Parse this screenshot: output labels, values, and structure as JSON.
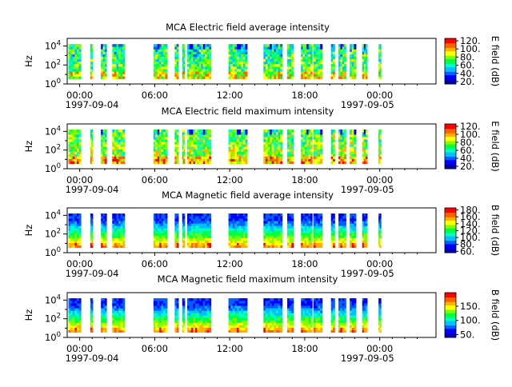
{
  "colors": {
    "spectral_scale": [
      "#0000b0",
      "#0000ff",
      "#0060ff",
      "#00c0ff",
      "#00ffc0",
      "#00ff40",
      "#80ff00",
      "#ffff00",
      "#ffb000",
      "#ff6000",
      "#ff0000"
    ],
    "axis": "#000000",
    "background": "#ffffff"
  },
  "chart_data": [
    {
      "type": "heatmap",
      "title": "MCA  Electric field average intensity",
      "ylabel": "Hz",
      "y_scale": "log",
      "y_ticks": [
        {
          "base": "10",
          "exp": "0"
        },
        {
          "base": "10",
          "exp": "2"
        },
        {
          "base": "10",
          "exp": "4"
        }
      ],
      "x_ticks": [
        "00:00",
        "06:00",
        "12:00",
        "18:00",
        "00:00"
      ],
      "x_start_date": "1997-09-04",
      "x_end_date": "1997-09-05",
      "x_range_hours": [
        -1,
        28.5
      ],
      "colorbar_label": "E field (dB)",
      "colorbar_ticks": [
        "20.",
        "40.",
        "60.",
        "80.",
        "100.",
        "120."
      ],
      "colorbar_range": [
        14,
        126
      ],
      "data_gaps": "yes",
      "typical_level": "medium-high"
    },
    {
      "type": "heatmap",
      "title": "MCA  Electric field maximum intensity",
      "ylabel": "Hz",
      "y_scale": "log",
      "y_ticks": [
        {
          "base": "10",
          "exp": "0"
        },
        {
          "base": "10",
          "exp": "2"
        },
        {
          "base": "10",
          "exp": "4"
        }
      ],
      "x_ticks": [
        "00:00",
        "06:00",
        "12:00",
        "18:00",
        "00:00"
      ],
      "x_start_date": "1997-09-04",
      "x_end_date": "1997-09-05",
      "x_range_hours": [
        -1,
        28.5
      ],
      "colorbar_label": "E field (dB)",
      "colorbar_ticks": [
        "20.",
        "40.",
        "60.",
        "80.",
        "100.",
        "120."
      ],
      "colorbar_range": [
        14,
        126
      ],
      "data_gaps": "yes",
      "typical_level": "high"
    },
    {
      "type": "heatmap",
      "title": "MCA  Magnetic field average intensity",
      "ylabel": "Hz",
      "y_scale": "log",
      "y_ticks": [
        {
          "base": "10",
          "exp": "0"
        },
        {
          "base": "10",
          "exp": "2"
        },
        {
          "base": "10",
          "exp": "4"
        }
      ],
      "x_ticks": [
        "00:00",
        "06:00",
        "12:00",
        "18:00",
        "00:00"
      ],
      "x_start_date": "1997-09-04",
      "x_end_date": "1997-09-05",
      "x_range_hours": [
        -1,
        28.5
      ],
      "colorbar_label": "B field (dB)",
      "colorbar_ticks": [
        "60.",
        "80.",
        "100.",
        "120.",
        "140.",
        "160.",
        "180."
      ],
      "colorbar_range": [
        56,
        186
      ],
      "data_gaps": "yes",
      "typical_level": "layered"
    },
    {
      "type": "heatmap",
      "title": "MCA  Magnetic field maximum intensity",
      "ylabel": "Hz",
      "y_scale": "log",
      "y_ticks": [
        {
          "base": "10",
          "exp": "0"
        },
        {
          "base": "10",
          "exp": "2"
        },
        {
          "base": "10",
          "exp": "4"
        }
      ],
      "x_ticks": [
        "00:00",
        "06:00",
        "12:00",
        "18:00",
        "00:00"
      ],
      "x_start_date": "1997-09-04",
      "x_end_date": "1997-09-05",
      "x_range_hours": [
        -1,
        28.5
      ],
      "colorbar_label": "B field (dB)",
      "colorbar_ticks": [
        "50.",
        "100.",
        "150."
      ],
      "colorbar_range": [
        40,
        198
      ],
      "data_gaps": "yes",
      "typical_level": "layered"
    }
  ],
  "data_segments_hours": [
    [
      -0.9,
      0.1
    ],
    [
      0.85,
      1.05
    ],
    [
      1.7,
      2.15
    ],
    [
      2.6,
      3.6
    ],
    [
      5.9,
      7.0
    ],
    [
      7.6,
      7.9
    ],
    [
      8.2,
      8.4
    ],
    [
      8.6,
      10.5
    ],
    [
      11.9,
      13.4
    ],
    [
      14.7,
      16.2
    ],
    [
      16.6,
      17.1
    ],
    [
      17.7,
      18.6
    ],
    [
      18.7,
      19.4
    ],
    [
      20.1,
      20.4
    ],
    [
      20.7,
      21.3
    ],
    [
      21.6,
      22.1
    ],
    [
      22.6,
      23.0
    ],
    [
      23.9,
      24.1
    ]
  ]
}
